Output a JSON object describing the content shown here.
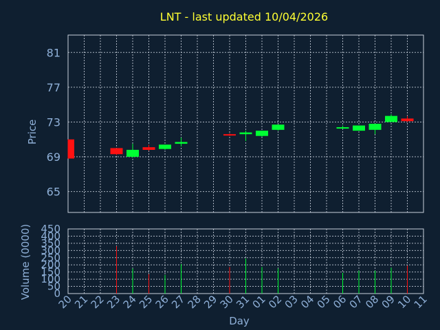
{
  "colors": {
    "background": "#0f1f30",
    "up": "#00ff33",
    "down": "#ff1111",
    "grid": "#c8d0dc",
    "text": "#8fb0d8",
    "title": "#ffff33"
  },
  "chart_data": {
    "type": "candlestick",
    "title": "LNT - last updated 10/04/2026",
    "xlabel": "Day",
    "ylabel": "Price",
    "volume_label": "Volume (0000)",
    "x_ticks": [
      "20",
      "21",
      "22",
      "23",
      "24",
      "25",
      "26",
      "27",
      "28",
      "29",
      "30",
      "31",
      "01",
      "02",
      "03",
      "04",
      "05",
      "06",
      "07",
      "08",
      "09",
      "10",
      "11"
    ],
    "price_ticks": [
      65,
      69,
      73,
      77,
      81
    ],
    "price_range": [
      62.6,
      83.0
    ],
    "volume_ticks": [
      0,
      50,
      100,
      150,
      200,
      250,
      300,
      350,
      400,
      450
    ],
    "volume_range": [
      0,
      450
    ],
    "grid": true,
    "candles": [
      {
        "day": "20",
        "open": 71.0,
        "high": 71.0,
        "low": 68.8,
        "close": 68.8,
        "volume": null
      },
      {
        "day": "23",
        "open": 70.0,
        "high": 70.0,
        "low": 69.2,
        "close": 69.3,
        "volume": 330
      },
      {
        "day": "24",
        "open": 69.0,
        "high": 70.5,
        "low": 68.9,
        "close": 69.8,
        "volume": 175
      },
      {
        "day": "25",
        "open": 70.1,
        "high": 70.4,
        "low": 69.7,
        "close": 69.8,
        "volume": 135
      },
      {
        "day": "26",
        "open": 69.9,
        "high": 70.4,
        "low": 69.8,
        "close": 70.4,
        "volume": 130
      },
      {
        "day": "27",
        "open": 70.5,
        "high": 71.2,
        "low": 70.2,
        "close": 70.7,
        "volume": 205
      },
      {
        "day": "30",
        "open": 71.6,
        "high": 71.7,
        "low": 71.4,
        "close": 71.5,
        "volume": 185
      },
      {
        "day": "31",
        "open": 71.6,
        "high": 72.0,
        "low": 70.8,
        "close": 71.8,
        "volume": 245
      },
      {
        "day": "01",
        "open": 71.4,
        "high": 72.0,
        "low": 71.3,
        "close": 72.0,
        "volume": 185
      },
      {
        "day": "02",
        "open": 72.1,
        "high": 72.7,
        "low": 72.0,
        "close": 72.7,
        "volume": 175
      },
      {
        "day": "06",
        "open": 72.4,
        "high": 72.6,
        "low": 72.2,
        "close": 72.4,
        "volume": 145
      },
      {
        "day": "07",
        "open": 72.0,
        "high": 72.6,
        "low": 72.0,
        "close": 72.6,
        "volume": 160
      },
      {
        "day": "08",
        "open": 72.1,
        "high": 72.8,
        "low": 71.6,
        "close": 72.8,
        "volume": 160
      },
      {
        "day": "09",
        "open": 73.0,
        "high": 73.9,
        "low": 73.0,
        "close": 73.7,
        "volume": 180
      },
      {
        "day": "10",
        "open": 73.4,
        "high": 73.7,
        "low": 73.0,
        "close": 73.1,
        "volume": 195
      }
    ]
  }
}
